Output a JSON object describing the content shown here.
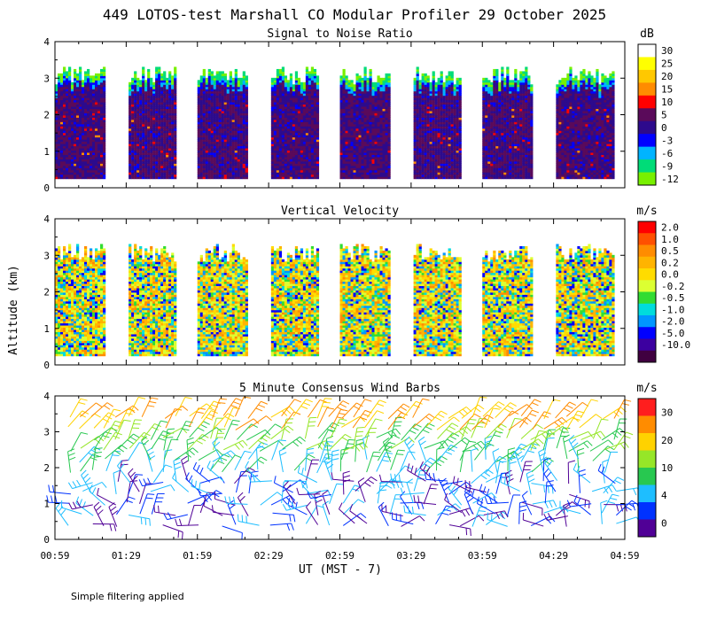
{
  "title": "449 LOTOS-test Marshall CO Modular Profiler 29 October 2025",
  "footnote": "Simple filtering applied",
  "shared_y_label": "Altitude (km)",
  "chart_data": [
    {
      "type": "heatmap",
      "title": "Signal to Noise Ratio",
      "units": "dB",
      "ylim": [
        0,
        4
      ],
      "yticks": [
        "0",
        "1",
        "2",
        "3",
        "4"
      ],
      "xlim_hours_ut": [
        0.983,
        4.983
      ],
      "data_blocks_ut": [
        [
          0.983,
          1.333
        ],
        [
          1.5,
          1.833
        ],
        [
          1.983,
          2.333
        ],
        [
          2.5,
          2.833
        ],
        [
          2.983,
          3.333
        ],
        [
          3.5,
          3.833
        ],
        [
          3.983,
          4.333
        ],
        [
          4.5,
          4.9
        ]
      ],
      "data_top_km_approx": 3.0,
      "colorbar": {
        "labels": [
          "30",
          "25",
          "20",
          "15",
          "10",
          "5",
          "0",
          "-3",
          "-6",
          "-9",
          "-12"
        ],
        "colors": [
          "#ffffff",
          "#ffff00",
          "#ffc800",
          "#ff8c00",
          "#ff0000",
          "#5a0a5a",
          "#2d0a8c",
          "#0000ff",
          "#00b4ff",
          "#00dc78",
          "#78f000"
        ]
      }
    },
    {
      "type": "heatmap",
      "title": "Vertical Velocity",
      "units": "m/s",
      "ylim": [
        0,
        4
      ],
      "yticks": [
        "0",
        "1",
        "2",
        "3",
        "4"
      ],
      "xlim_hours_ut": [
        0.983,
        4.983
      ],
      "data_blocks_ut": [
        [
          0.983,
          1.333
        ],
        [
          1.5,
          1.833
        ],
        [
          1.983,
          2.333
        ],
        [
          2.5,
          2.833
        ],
        [
          2.983,
          3.333
        ],
        [
          3.5,
          3.833
        ],
        [
          3.983,
          4.333
        ],
        [
          4.5,
          4.9
        ]
      ],
      "colorbar": {
        "labels": [
          "2.0",
          "1.0",
          "0.5",
          "0.2",
          "0.0",
          "-0.2",
          "-0.5",
          "-1.0",
          "-2.0",
          "-5.0",
          "-10.0"
        ],
        "colors": [
          "#ff0000",
          "#ff5000",
          "#ff8c00",
          "#ffb400",
          "#ffdc00",
          "#dcff32",
          "#32dc32",
          "#00dcdc",
          "#0096ff",
          "#0000ff",
          "#3c00a0",
          "#400040"
        ]
      }
    },
    {
      "type": "scatter",
      "title": "5 Minute Consensus Wind Barbs",
      "units": "m/s",
      "ylim": [
        0,
        4
      ],
      "yticks": [
        "0",
        "1",
        "2",
        "3",
        "4"
      ],
      "xlim_hours_ut": [
        0.983,
        4.983
      ],
      "xticks": [
        "00:59",
        "01:29",
        "01:59",
        "02:29",
        "02:59",
        "03:29",
        "03:59",
        "04:29",
        "04:59"
      ],
      "xlabel": "UT  (MST - 7)",
      "colorbar": {
        "labels": [
          "30",
          "20",
          "10",
          "4",
          "0"
        ],
        "colors": [
          "#ff1e1e",
          "#ff8c00",
          "#ffd200",
          "#96e628",
          "#28c850",
          "#1ebeff",
          "#0032ff",
          "#500096"
        ]
      }
    }
  ]
}
